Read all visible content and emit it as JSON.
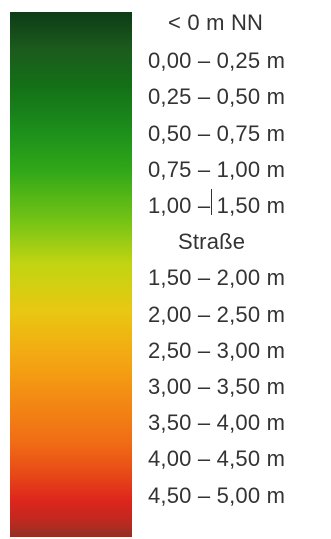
{
  "legend": {
    "items": [
      "< 0 m NN",
      "0,00 –  0,25 m",
      "0,25 –  0,50 m",
      "0,50  – 0,75 m",
      "0,75  – 1,00 m",
      "1,00  – 1,50 m",
      "Straße",
      "1,50 – 2,00 m",
      "2,00 – 2,50 m",
      "2,50 – 3,00 m",
      "3,00 – 3,50 m",
      "3,50 – 4,00 m",
      "4,00 – 4,50 m",
      "4,50 – 5,00 m"
    ]
  }
}
